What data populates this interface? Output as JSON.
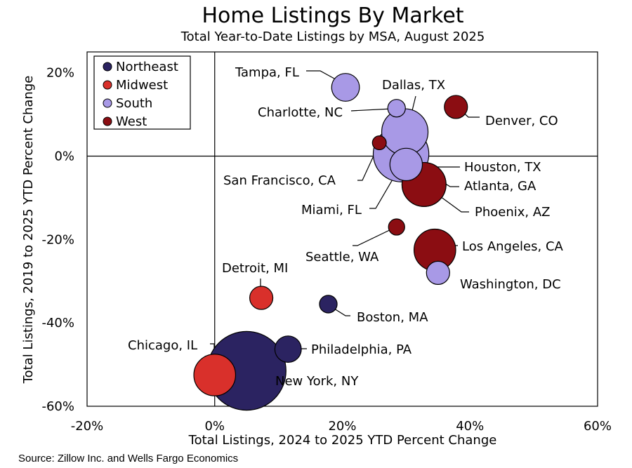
{
  "chart_data": {
    "type": "scatter",
    "title": "Home Listings By Market",
    "subtitle": "Total Year-to-Date Listings by MSA, August 2025",
    "xlabel": "Total Listings, 2024 to 2025 YTD Percent Change",
    "ylabel": "Total Listings, 2019 to 2025 YTD Percent Change",
    "xlim": [
      -20,
      60
    ],
    "ylim": [
      -60,
      25
    ],
    "x_ticks": [
      -20,
      0,
      20,
      40,
      60
    ],
    "y_ticks": [
      20,
      0,
      -20,
      -40,
      -60
    ],
    "x_tick_labels": [
      "-20%",
      "0%",
      "20%",
      "40%",
      "60%"
    ],
    "y_tick_labels": [
      "20%",
      "0%",
      "-20%",
      "-40%",
      "-60%"
    ],
    "source": "Source: Zillow Inc. and Wells Fargo Economics",
    "legend_position": "top-left",
    "series": [
      {
        "name": "Northeast",
        "color": "#2b2361"
      },
      {
        "name": "Midwest",
        "color": "#d9302b"
      },
      {
        "name": "South",
        "color": "#a899e6"
      },
      {
        "name": "West",
        "color": "#8b0d12"
      }
    ],
    "points": [
      {
        "label": "Tampa, FL",
        "region": "South",
        "x": 20.5,
        "y": 16.5,
        "size": 6.0
      },
      {
        "label": "Dallas, TX",
        "region": "South",
        "x": 29.8,
        "y": 5.8,
        "size": 10.0
      },
      {
        "label": "Charlotte, NC",
        "region": "South",
        "x": 28.5,
        "y": 11.5,
        "size": 3.8
      },
      {
        "label": "Denver, CO",
        "region": "West",
        "x": 37.8,
        "y": 11.8,
        "size": 5.0
      },
      {
        "label": "Houston, TX",
        "region": "South",
        "x": 29.2,
        "y": 0.5,
        "size": 12.0
      },
      {
        "label": "San Francisco, CA",
        "region": "West",
        "x": 25.8,
        "y": 3.2,
        "size": 3.0
      },
      {
        "label": "Atlanta, GA",
        "region": "West",
        "x": 32.8,
        "y": -6.8,
        "size": 9.5
      },
      {
        "label": "Miami, FL",
        "region": "South",
        "x": 30.0,
        "y": -2.0,
        "size": 7.0
      },
      {
        "label": "Phoenix, AZ",
        "region": "West",
        "x": 32.8,
        "y": -6.8,
        "size": 9.5
      },
      {
        "label": "Seattle, WA",
        "region": "West",
        "x": 28.5,
        "y": -17.0,
        "size": 3.5
      },
      {
        "label": "Los Angeles, CA",
        "region": "West",
        "x": 34.5,
        "y": -22.5,
        "size": 9.0
      },
      {
        "label": "Washington, DC",
        "region": "South",
        "x": 35.0,
        "y": -28.0,
        "size": 5.0
      },
      {
        "label": "Detroit, MI",
        "region": "Midwest",
        "x": 7.3,
        "y": -34.0,
        "size": 5.0
      },
      {
        "label": "Boston, MA",
        "region": "Northeast",
        "x": 17.8,
        "y": -35.5,
        "size": 3.8
      },
      {
        "label": "Philadelphia, PA",
        "region": "Northeast",
        "x": 11.5,
        "y": -46.3,
        "size": 5.7
      },
      {
        "label": "Chicago, IL",
        "region": "Midwest",
        "x": 0.0,
        "y": -52.5,
        "size": 9.0
      },
      {
        "label": "New York, NY",
        "region": "Northeast",
        "x": 5.0,
        "y": -51.5,
        "size": 17.0
      }
    ]
  }
}
